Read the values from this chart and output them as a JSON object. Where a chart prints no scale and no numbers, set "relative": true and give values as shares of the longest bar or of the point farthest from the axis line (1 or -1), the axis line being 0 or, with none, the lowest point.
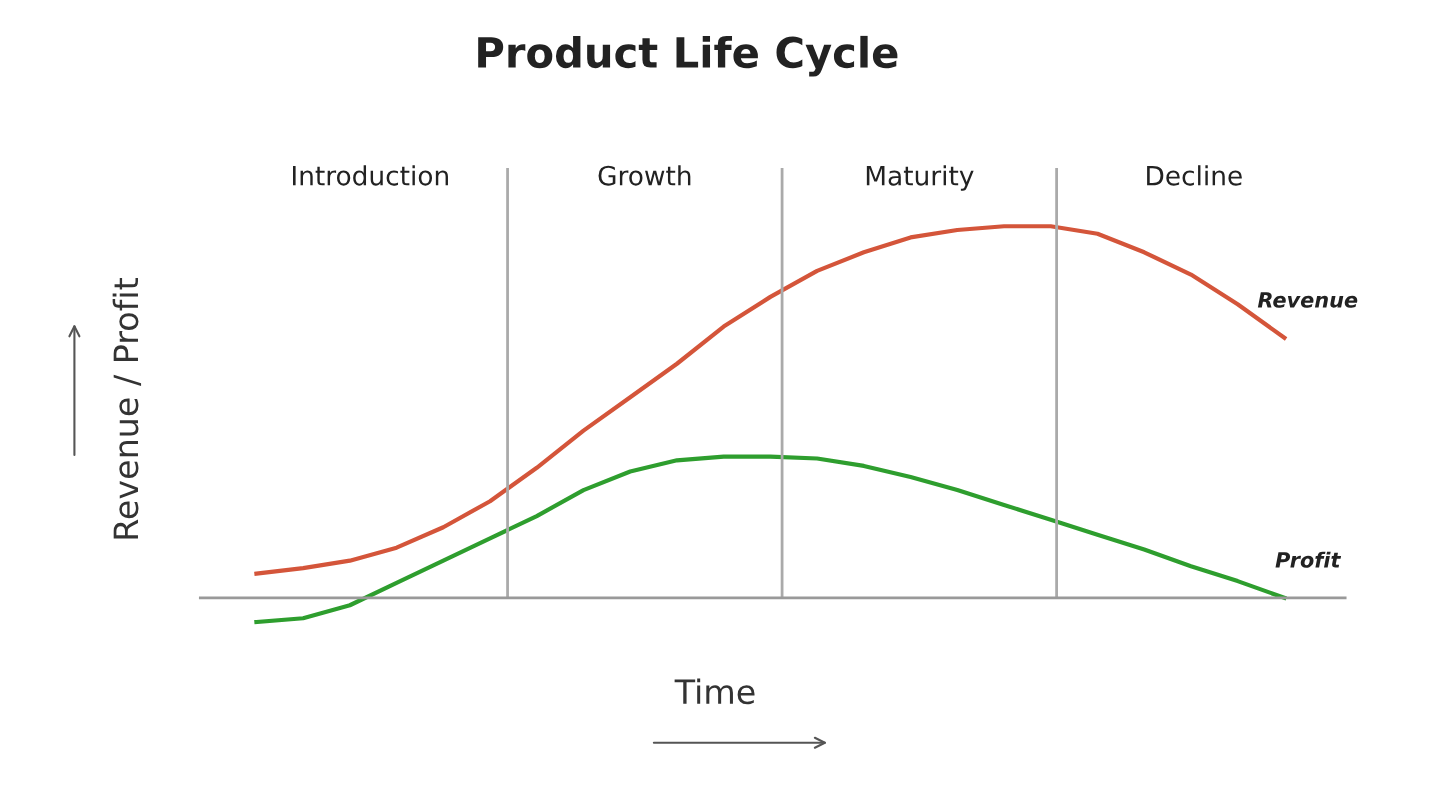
{
  "chart_data": {
    "type": "line",
    "title": "Product Life Cycle",
    "xlabel": "Time",
    "ylabel": "Revenue / Profit",
    "relative": true,
    "categories": [
      null,
      null,
      null,
      null,
      null,
      null,
      null,
      null,
      null,
      null,
      null,
      null,
      null,
      null,
      null,
      null,
      null,
      null,
      null,
      null,
      null,
      null,
      null
    ],
    "series": [
      {
        "name": "Revenue",
        "color": "#d4553a",
        "values": [
          0.065,
          0.08,
          0.1,
          0.135,
          0.19,
          0.26,
          0.35,
          0.45,
          0.54,
          0.63,
          0.73,
          0.81,
          0.88,
          0.93,
          0.97,
          0.99,
          1.0,
          1.0,
          0.98,
          0.93,
          0.87,
          0.79,
          0.7
        ]
      },
      {
        "name": "Profit",
        "color": "#2e9e2e",
        "values": [
          -0.065,
          -0.055,
          -0.02,
          0.04,
          0.1,
          0.16,
          0.22,
          0.29,
          0.34,
          0.37,
          0.38,
          0.38,
          0.375,
          0.355,
          0.325,
          0.29,
          0.25,
          0.21,
          0.17,
          0.13,
          0.085,
          0.045,
          0
        ]
      }
    ],
    "annotations": [
      "Introduction",
      "Growth",
      "Maturity",
      "Decline"
    ],
    "legend": false
  }
}
